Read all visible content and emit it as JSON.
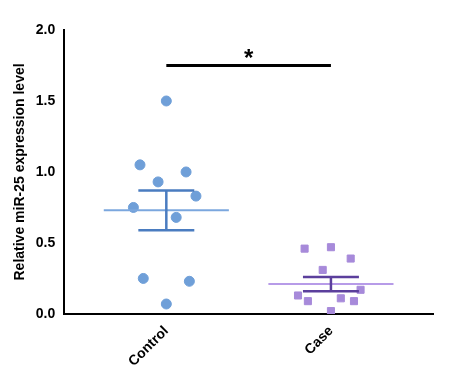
{
  "chart_data": {
    "type": "scatter",
    "ylabel": "Relative miR-25 expression level",
    "categories": [
      "Control",
      "Case"
    ],
    "values": [
      [
        1.5,
        1.05,
        1.0,
        0.93,
        0.83,
        0.75,
        0.68,
        0.25,
        0.23,
        0.07
      ],
      [
        0.47,
        0.46,
        0.39,
        0.31,
        0.17,
        0.13,
        0.11,
        0.09,
        0.09,
        0.02
      ]
    ],
    "colors": [
      "#6f9fd8",
      "#a78ada"
    ],
    "means": [
      0.73,
      0.21
    ],
    "errors": [
      0.14,
      0.05
    ],
    "ylim": [
      0,
      2
    ],
    "yticks": [
      {
        "value": 0,
        "label": "0.0"
      },
      0.5,
      {
        "value": 1,
        "label": "1.0"
      },
      1.5,
      {
        "value": 2,
        "label": "2.0"
      }
    ],
    "grid": false,
    "annotations": [
      {
        "text": "*",
        "x": [
          "Control",
          "Case"
        ],
        "y": 1.75
      }
    ]
  }
}
